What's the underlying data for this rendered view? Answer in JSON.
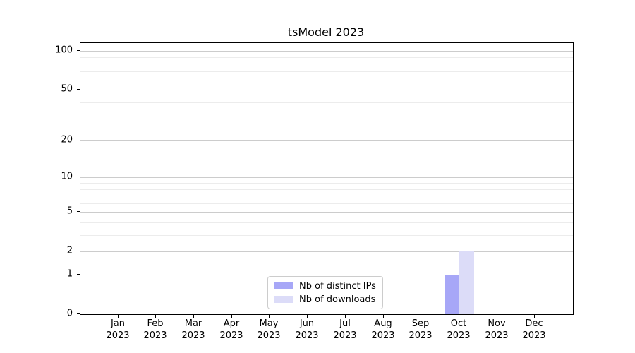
{
  "title": "tsModel 2023",
  "chart_data": {
    "type": "bar",
    "title": "tsModel 2023",
    "categories": [
      "Jan 2023",
      "Feb 2023",
      "Mar 2023",
      "Apr 2023",
      "May 2023",
      "Jun 2023",
      "Jul 2023",
      "Aug 2023",
      "Sep 2023",
      "Oct 2023",
      "Nov 2023",
      "Dec 2023"
    ],
    "series": [
      {
        "name": "Nb of distinct IPs",
        "color": "#a7a7f7",
        "values": [
          0,
          0,
          0,
          0,
          0,
          0,
          0,
          0,
          0,
          1,
          0,
          0
        ]
      },
      {
        "name": "Nb of downloads",
        "color": "#dcdcf8",
        "values": [
          0,
          0,
          0,
          0,
          0,
          0,
          0,
          0,
          0,
          2,
          0,
          0
        ]
      }
    ],
    "xlabel": "",
    "ylabel": "",
    "y_axis": {
      "scale": "log1p",
      "ticks": [
        0,
        1,
        2,
        5,
        10,
        20,
        50,
        100
      ],
      "minor_ticks": [
        3,
        4,
        6,
        7,
        8,
        9,
        30,
        40,
        60,
        70,
        80,
        90
      ],
      "max": 115
    },
    "grid": {
      "major_color": "#cccccc",
      "minor_color": "#ececec"
    },
    "legend_position": "lower center"
  }
}
